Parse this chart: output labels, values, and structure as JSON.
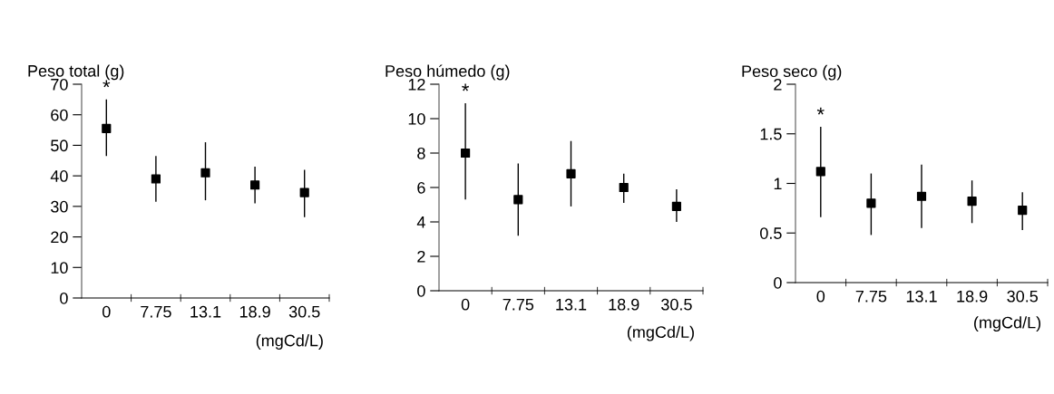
{
  "chart_data": [
    {
      "type": "scatter",
      "ylabel": "Peso total (g)",
      "xlabel": "(mgCd/L)",
      "categories": [
        "0",
        "7.75",
        "13.1",
        "18.9",
        "30.5"
      ],
      "marker": "square",
      "grid": false,
      "legend": false,
      "series": [
        {
          "color": "#000000",
          "values": [
            55.5,
            39,
            41,
            37,
            34.5
          ],
          "errors": [
            [
              46.5,
              65
            ],
            [
              31.5,
              46.5
            ],
            [
              32,
              51
            ],
            [
              31,
              43
            ],
            [
              26.5,
              42
            ]
          ]
        }
      ],
      "ylim": [
        0,
        70
      ],
      "yticks": [
        0,
        10,
        20,
        30,
        40,
        50,
        60,
        70
      ],
      "annotations": [
        {
          "text": "*",
          "x": "0",
          "y": 65
        }
      ]
    },
    {
      "type": "scatter",
      "ylabel": "Peso húmedo (g)",
      "xlabel": "(mgCd/L)",
      "categories": [
        "0",
        "7.75",
        "13.1",
        "18.9",
        "30.5"
      ],
      "marker": "square",
      "grid": false,
      "legend": false,
      "series": [
        {
          "color": "#000000",
          "values": [
            8.0,
            5.3,
            6.8,
            6.0,
            4.9
          ],
          "errors": [
            [
              5.3,
              10.9
            ],
            [
              3.2,
              7.4
            ],
            [
              4.9,
              8.7
            ],
            [
              5.1,
              6.8
            ],
            [
              4.0,
              5.9
            ]
          ]
        }
      ],
      "ylim": [
        0,
        12
      ],
      "yticks": [
        0,
        2,
        4,
        6,
        8,
        10,
        12
      ],
      "annotations": [
        {
          "text": "*",
          "x": "0",
          "y": 10.9
        }
      ]
    },
    {
      "type": "scatter",
      "ylabel": "Peso seco (g)",
      "xlabel": "(mgCd/L)",
      "categories": [
        "0",
        "7.75",
        "13.1",
        "18.9",
        "30.5"
      ],
      "marker": "square",
      "grid": false,
      "legend": false,
      "series": [
        {
          "color": "#000000",
          "values": [
            1.12,
            0.8,
            0.87,
            0.82,
            0.73
          ],
          "errors": [
            [
              0.66,
              1.57
            ],
            [
              0.48,
              1.1
            ],
            [
              0.55,
              1.19
            ],
            [
              0.6,
              1.03
            ],
            [
              0.53,
              0.91
            ]
          ]
        }
      ],
      "ylim": [
        0,
        2
      ],
      "yticks": [
        0,
        0.5,
        1,
        1.5,
        2
      ],
      "annotations": [
        {
          "text": "*",
          "x": "0",
          "y": 1.57
        }
      ]
    }
  ]
}
